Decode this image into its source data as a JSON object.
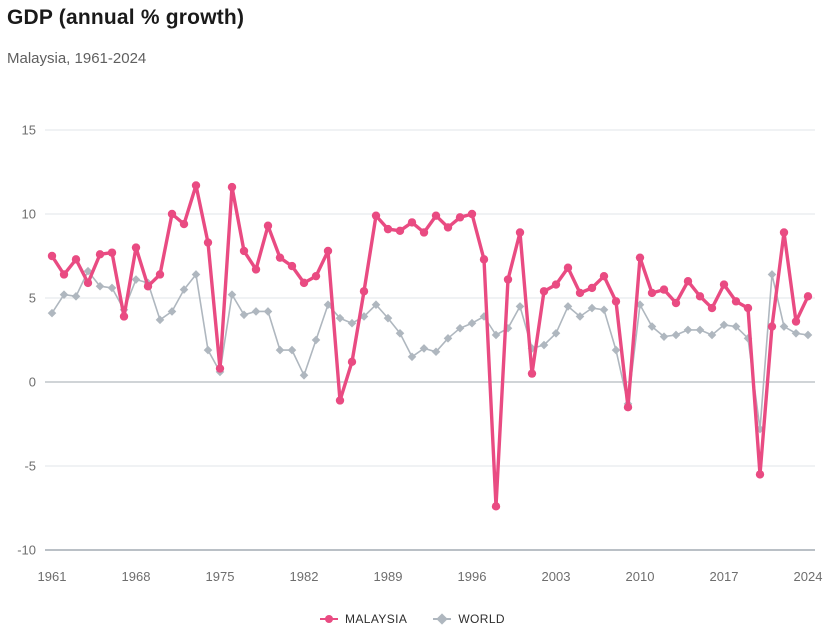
{
  "header": {
    "title": "GDP (annual % growth)",
    "subtitle": "Malaysia, 1961-2024"
  },
  "colors": {
    "malaysia": "#E94B82",
    "world": "#AFB7BF",
    "grid": "#E2E6E9",
    "zero_line": "#A0A8AF",
    "base_line": "#76818C",
    "axis_text": "#6E6E6E",
    "title_text": "#1A1A1A",
    "subtitle_text": "#5F5F5F"
  },
  "legend": {
    "malaysia_label": "MALAYSIA",
    "world_label": "WORLD"
  },
  "chart_data": {
    "type": "line",
    "title": "GDP (annual % growth)",
    "subtitle": "Malaysia, 1961-2024",
    "xlabel": "",
    "ylabel": "",
    "ylim": [
      -10,
      15
    ],
    "yticks": [
      15,
      10,
      5,
      0,
      -5,
      -10
    ],
    "xticks": [
      1961,
      1968,
      1975,
      1982,
      1989,
      1996,
      2003,
      2010,
      2017,
      2024
    ],
    "grid": true,
    "legend_position": "bottom",
    "x": [
      1961,
      1962,
      1963,
      1964,
      1965,
      1966,
      1967,
      1968,
      1969,
      1970,
      1971,
      1972,
      1973,
      1974,
      1975,
      1976,
      1977,
      1978,
      1979,
      1980,
      1981,
      1982,
      1983,
      1984,
      1985,
      1986,
      1987,
      1988,
      1989,
      1990,
      1991,
      1992,
      1993,
      1994,
      1995,
      1996,
      1997,
      1998,
      1999,
      2000,
      2001,
      2002,
      2003,
      2004,
      2005,
      2006,
      2007,
      2008,
      2009,
      2010,
      2011,
      2012,
      2013,
      2014,
      2015,
      2016,
      2017,
      2018,
      2019,
      2020,
      2021,
      2022,
      2023,
      2024
    ],
    "series": [
      {
        "name": "MALAYSIA",
        "marker": "circle",
        "color": "#E94B82",
        "values": [
          7.5,
          6.4,
          7.3,
          5.9,
          7.6,
          7.7,
          3.9,
          8.0,
          5.7,
          6.4,
          10.0,
          9.4,
          11.7,
          8.3,
          0.8,
          11.6,
          7.8,
          6.7,
          9.3,
          7.4,
          6.9,
          5.9,
          6.3,
          7.8,
          -1.1,
          1.2,
          5.4,
          9.9,
          9.1,
          9.0,
          9.5,
          8.9,
          9.9,
          9.2,
          9.8,
          10.0,
          7.3,
          -7.4,
          6.1,
          8.9,
          0.5,
          5.4,
          5.8,
          6.8,
          5.3,
          5.6,
          6.3,
          4.8,
          -1.5,
          7.4,
          5.3,
          5.5,
          4.7,
          6.0,
          5.1,
          4.4,
          5.8,
          4.8,
          4.4,
          -5.5,
          3.3,
          8.9,
          3.6,
          5.1
        ]
      },
      {
        "name": "WORLD",
        "marker": "diamond",
        "color": "#AFB7BF",
        "values": [
          4.1,
          5.2,
          5.1,
          6.6,
          5.7,
          5.6,
          4.3,
          6.1,
          5.9,
          3.7,
          4.2,
          5.5,
          6.4,
          1.9,
          0.6,
          5.2,
          4.0,
          4.2,
          4.2,
          1.9,
          1.9,
          0.4,
          2.5,
          4.6,
          3.8,
          3.5,
          3.9,
          4.6,
          3.8,
          2.9,
          1.5,
          2.0,
          1.8,
          2.6,
          3.2,
          3.5,
          3.9,
          2.8,
          3.2,
          4.5,
          2.0,
          2.2,
          2.9,
          4.5,
          3.9,
          4.4,
          4.3,
          1.9,
          -1.3,
          4.6,
          3.3,
          2.7,
          2.8,
          3.1,
          3.1,
          2.8,
          3.4,
          3.3,
          2.6,
          -2.8,
          6.4,
          3.3,
          2.9,
          2.8
        ]
      }
    ]
  }
}
